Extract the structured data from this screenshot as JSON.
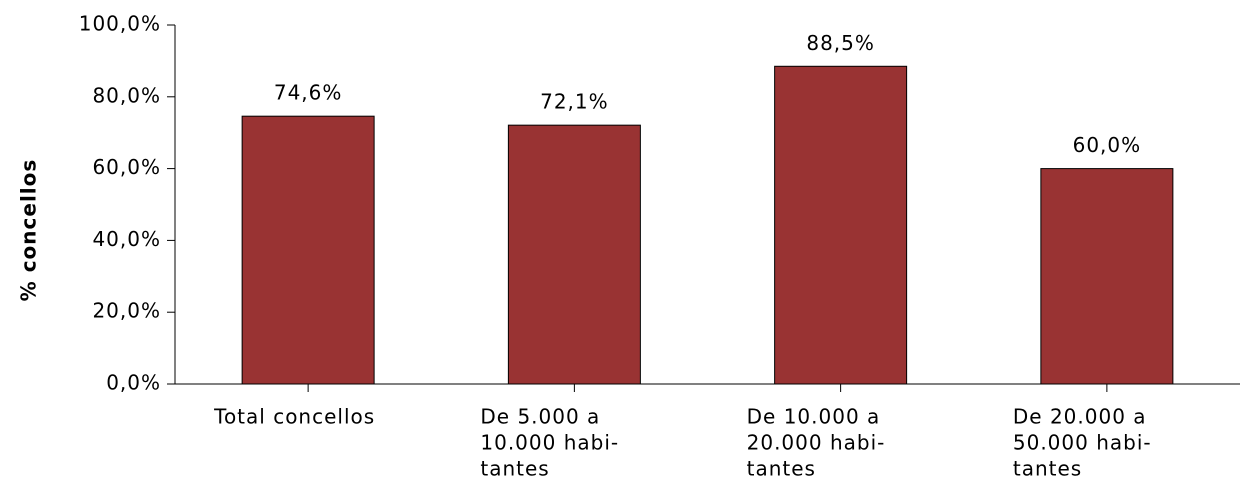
{
  "chart_data": {
    "type": "bar",
    "y_label": "% concellos",
    "categories": [
      [
        "Total concellos"
      ],
      [
        "De 5.000 a",
        "10.000 habi-",
        "tantes"
      ],
      [
        "De 10.000 a",
        "20.000 habi-",
        "tantes"
      ],
      [
        "De 20.000 a",
        "50.000 habi-",
        "tantes"
      ]
    ],
    "values": [
      74.6,
      72.1,
      88.5,
      60.0
    ],
    "value_labels": [
      "74,6%",
      "72,1%",
      "88,5%",
      "60,0%"
    ],
    "color": "#993333",
    "ylim": [
      0,
      100
    ],
    "yticks": [
      {
        "value": 0,
        "label": "0,0%"
      },
      {
        "value": 20,
        "label": "20,0%"
      },
      {
        "value": 40,
        "label": "40,0%"
      },
      {
        "value": 60,
        "label": "60,0%"
      },
      {
        "value": 80,
        "label": "80,0%"
      },
      {
        "value": 100,
        "label": "100,0%"
      }
    ]
  }
}
